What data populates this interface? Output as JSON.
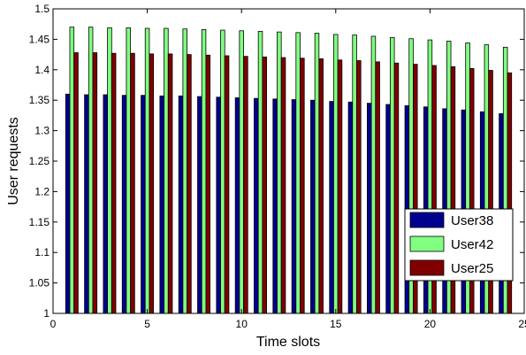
{
  "chart_data": {
    "type": "bar",
    "title": "",
    "xlabel": "Time slots",
    "ylabel": "User requests",
    "xlim": [
      0,
      25
    ],
    "ylim": [
      1,
      1.5
    ],
    "x_ticks": [
      "0",
      "5",
      "10",
      "15",
      "20",
      "25"
    ],
    "y_ticks": [
      "1",
      "1.05",
      "1.1",
      "1.15",
      "1.2",
      "1.25",
      "1.3",
      "1.35",
      "1.4",
      "1.45",
      "1.5"
    ],
    "grid": false,
    "legend_position": "lower-right",
    "x": [
      1,
      2,
      3,
      4,
      5,
      6,
      7,
      8,
      9,
      10,
      11,
      12,
      13,
      14,
      15,
      16,
      17,
      18,
      19,
      20,
      21,
      22,
      23,
      24
    ],
    "series": [
      {
        "name": "User38",
        "color": "#00008f",
        "values": [
          1.36,
          1.359,
          1.359,
          1.358,
          1.358,
          1.357,
          1.357,
          1.356,
          1.355,
          1.354,
          1.353,
          1.352,
          1.351,
          1.35,
          1.348,
          1.347,
          1.345,
          1.343,
          1.341,
          1.339,
          1.336,
          1.334,
          1.331,
          1.328
        ]
      },
      {
        "name": "User42",
        "color": "#80ff80",
        "values": [
          1.47,
          1.47,
          1.469,
          1.469,
          1.468,
          1.468,
          1.467,
          1.466,
          1.465,
          1.464,
          1.463,
          1.462,
          1.461,
          1.46,
          1.458,
          1.457,
          1.455,
          1.453,
          1.451,
          1.449,
          1.447,
          1.444,
          1.441,
          1.437
        ]
      },
      {
        "name": "User25",
        "color": "#800000",
        "values": [
          1.428,
          1.428,
          1.427,
          1.427,
          1.426,
          1.426,
          1.425,
          1.424,
          1.423,
          1.422,
          1.421,
          1.42,
          1.419,
          1.418,
          1.416,
          1.415,
          1.413,
          1.411,
          1.409,
          1.407,
          1.405,
          1.402,
          1.399,
          1.395
        ]
      }
    ]
  }
}
